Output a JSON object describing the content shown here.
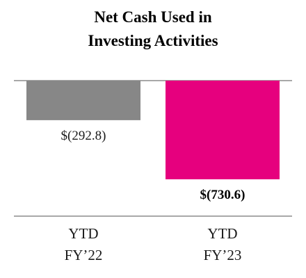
{
  "chart_data": {
    "type": "bar",
    "title_lines": [
      "Net Cash Used in",
      "Investing Activities"
    ],
    "categories": [
      [
        "YTD",
        "FY’22"
      ],
      [
        "YTD",
        "FY’23"
      ]
    ],
    "values": [
      -292.8,
      -730.6
    ],
    "value_labels": [
      "$(292.8)",
      "$(730.6)"
    ],
    "label_bold": [
      false,
      true
    ],
    "colors": [
      "#878787",
      "#e6007e"
    ],
    "axis_color": "#8c8c8c",
    "ylim": [
      -730.6,
      0
    ],
    "grid": false,
    "legend": "none"
  }
}
